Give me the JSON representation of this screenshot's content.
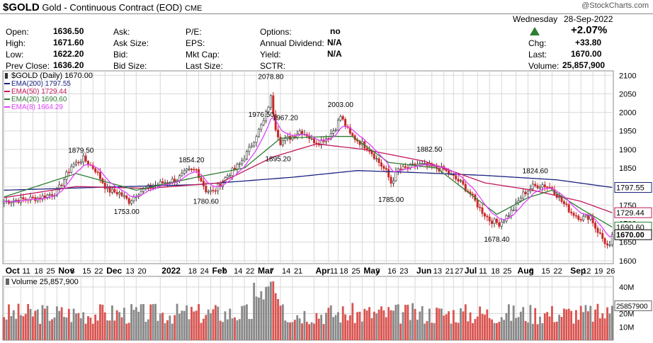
{
  "header": {
    "symbol": "$GOLD",
    "name": "Gold - Continuous Contract (EOD)",
    "exchange": "CME",
    "watermark": "@StockCharts.com",
    "day": "Wednesday",
    "date": "28-Sep-2022"
  },
  "quote": {
    "open_label": "Open:",
    "open": "1636.50",
    "high_label": "High:",
    "high": "1671.60",
    "low_label": "Low:",
    "low": "1622.20",
    "prev_label": "Prev Close:",
    "prev": "1636.20",
    "ask_label": "Ask:",
    "asksize_label": "Ask Size:",
    "bid_label": "Bid:",
    "bidsize_label": "Bid Size:",
    "pe_label": "P/E:",
    "eps_label": "EPS:",
    "mktcap_label": "Mkt Cap:",
    "lastsize_label": "Last Size:",
    "options_label": "Options:",
    "options": "no",
    "div_label": "Annual Dividend:",
    "div": "N/A",
    "yield_label": "Yield:",
    "yield": "N/A",
    "sctr_label": "SCTR:",
    "pct_change": "+2.07%",
    "chg_label": "Chg:",
    "chg": "+33.80",
    "last_label": "Last:",
    "last": "1670.00",
    "vol_label": "Volume:",
    "volume": "25,857,900"
  },
  "colors": {
    "ema200": "#1a237e",
    "ema50": "#c2185b",
    "ema20": "#2e7d32",
    "ema8": "#e040fb",
    "up": "#888888",
    "down": "#d9534f",
    "grid": "#d8d8d8"
  },
  "chart_data": {
    "type": "line",
    "legend": {
      "price": "$GOLD (Daily) 1670.00",
      "ema200": "EMA(200) 1797.55",
      "ema50": "EMA(50) 1729.44",
      "ema20": "EMA(20) 1690.60",
      "ema8": "EMA(8) 1664.29"
    },
    "ylim": [
      1592,
      2112
    ],
    "yticks": [
      1600,
      1650,
      1700,
      1750,
      1800,
      1850,
      1900,
      1950,
      2000,
      2050,
      2100
    ],
    "last_labels": [
      {
        "value": 1797.55,
        "text": "1797.55",
        "series": "ema200"
      },
      {
        "value": 1729.44,
        "text": "1729.44",
        "series": "ema50"
      },
      {
        "value": 1690.6,
        "text": "1690.60",
        "series": "ema20"
      },
      {
        "value": 1670.0,
        "text": "1670.00",
        "series": "price"
      }
    ],
    "xticks": [
      {
        "i": 0,
        "label": "Oct",
        "major": true
      },
      {
        "i": 7,
        "label": "11"
      },
      {
        "i": 12,
        "label": "18"
      },
      {
        "i": 17,
        "label": "25"
      },
      {
        "i": 22,
        "label": "Nov",
        "major": true
      },
      {
        "i": 27,
        "label": "8"
      },
      {
        "i": 32,
        "label": "15"
      },
      {
        "i": 37,
        "label": "22"
      },
      {
        "i": 42,
        "label": "Dec",
        "major": true
      },
      {
        "i": 50,
        "label": "13"
      },
      {
        "i": 55,
        "label": "20"
      },
      {
        "i": 65,
        "label": "2022",
        "major": true
      },
      {
        "i": 76,
        "label": "18"
      },
      {
        "i": 81,
        "label": "24"
      },
      {
        "i": 86,
        "label": "Feb",
        "major": true
      },
      {
        "i": 90,
        "label": "7"
      },
      {
        "i": 95,
        "label": "14"
      },
      {
        "i": 100,
        "label": "22"
      },
      {
        "i": 105,
        "label": "Mar",
        "major": true
      },
      {
        "i": 110,
        "label": "7"
      },
      {
        "i": 115,
        "label": "14"
      },
      {
        "i": 120,
        "label": "21"
      },
      {
        "i": 129,
        "label": "Apr",
        "major": true
      },
      {
        "i": 135,
        "label": "11"
      },
      {
        "i": 139,
        "label": "18"
      },
      {
        "i": 144,
        "label": "25"
      },
      {
        "i": 149,
        "label": "May",
        "major": true
      },
      {
        "i": 154,
        "label": "9"
      },
      {
        "i": 159,
        "label": "16"
      },
      {
        "i": 164,
        "label": "23"
      },
      {
        "i": 171,
        "label": "Jun",
        "major": true
      },
      {
        "i": 178,
        "label": "13"
      },
      {
        "i": 183,
        "label": "21"
      },
      {
        "i": 187,
        "label": "27"
      },
      {
        "i": 191,
        "label": "Jul",
        "major": true
      },
      {
        "i": 197,
        "label": "11"
      },
      {
        "i": 202,
        "label": "18"
      },
      {
        "i": 207,
        "label": "25"
      },
      {
        "i": 213,
        "label": "Aug",
        "major": true
      },
      {
        "i": 218,
        "label": "8"
      },
      {
        "i": 223,
        "label": "15"
      },
      {
        "i": 228,
        "label": "22"
      },
      {
        "i": 235,
        "label": "Sep",
        "major": true
      },
      {
        "i": 240,
        "label": "12"
      },
      {
        "i": 245,
        "label": "19"
      },
      {
        "i": 250,
        "label": "26"
      }
    ],
    "anchors": [
      [
        0,
        1760
      ],
      [
        8,
        1765
      ],
      [
        15,
        1770
      ],
      [
        22,
        1785
      ],
      [
        28,
        1855
      ],
      [
        33,
        1875
      ],
      [
        38,
        1845
      ],
      [
        43,
        1790
      ],
      [
        48,
        1782
      ],
      [
        52,
        1760
      ],
      [
        56,
        1785
      ],
      [
        61,
        1800
      ],
      [
        66,
        1810
      ],
      [
        72,
        1820
      ],
      [
        76,
        1840
      ],
      [
        80,
        1845
      ],
      [
        84,
        1790
      ],
      [
        87,
        1785
      ],
      [
        93,
        1830
      ],
      [
        98,
        1860
      ],
      [
        102,
        1900
      ],
      [
        105,
        1940
      ],
      [
        108,
        1975
      ],
      [
        111,
        2040
      ],
      [
        113,
        1960
      ],
      [
        115,
        1920
      ],
      [
        118,
        1930
      ],
      [
        120,
        1935
      ],
      [
        123,
        1950
      ],
      [
        126,
        1940
      ],
      [
        128,
        1925
      ],
      [
        131,
        1920
      ],
      [
        135,
        1935
      ],
      [
        138,
        1960
      ],
      [
        140,
        1990
      ],
      [
        144,
        1940
      ],
      [
        148,
        1920
      ],
      [
        152,
        1900
      ],
      [
        156,
        1865
      ],
      [
        159,
        1840
      ],
      [
        161,
        1810
      ],
      [
        164,
        1845
      ],
      [
        168,
        1850
      ],
      [
        172,
        1860
      ],
      [
        176,
        1855
      ],
      [
        180,
        1850
      ],
      [
        183,
        1845
      ],
      [
        186,
        1830
      ],
      [
        190,
        1810
      ],
      [
        194,
        1780
      ],
      [
        198,
        1740
      ],
      [
        202,
        1710
      ],
      [
        206,
        1700
      ],
      [
        208,
        1712
      ],
      [
        212,
        1740
      ],
      [
        216,
        1780
      ],
      [
        220,
        1800
      ],
      [
        224,
        1805
      ],
      [
        228,
        1795
      ],
      [
        232,
        1760
      ],
      [
        236,
        1730
      ],
      [
        240,
        1715
      ],
      [
        244,
        1720
      ],
      [
        246,
        1690
      ],
      [
        249,
        1660
      ],
      [
        251,
        1640
      ],
      [
        252,
        1636
      ],
      [
        253,
        1670
      ]
    ],
    "peaks": [
      {
        "i": 32,
        "value": 1879.5,
        "label": "1879.50",
        "pos": "above"
      },
      {
        "i": 51,
        "value": 1753.0,
        "label": "1753.00",
        "pos": "below"
      },
      {
        "i": 78,
        "value": 1854.2,
        "label": "1854.20",
        "pos": "above"
      },
      {
        "i": 84,
        "value": 1780.6,
        "label": "1780.60",
        "pos": "below"
      },
      {
        "i": 107,
        "value": 1976.5,
        "label": "1976.50",
        "pos": "above"
      },
      {
        "i": 111,
        "value": 2078.8,
        "label": "2078.80",
        "pos": "above"
      },
      {
        "i": 117,
        "value": 1967.2,
        "label": "1967.20",
        "pos": "above"
      },
      {
        "i": 114,
        "value": 1895.2,
        "label": "1895.20",
        "pos": "below"
      },
      {
        "i": 140,
        "value": 2003.0,
        "label": "2003.00",
        "pos": "above"
      },
      {
        "i": 161,
        "value": 1785.0,
        "label": "1785.00",
        "pos": "below"
      },
      {
        "i": 177,
        "value": 1882.5,
        "label": "1882.50",
        "pos": "above"
      },
      {
        "i": 205,
        "value": 1678.4,
        "label": "1678.40",
        "pos": "below"
      },
      {
        "i": 221,
        "value": 1824.6,
        "label": "1824.60",
        "pos": "above"
      }
    ],
    "ema_anchors": {
      "ema200": [
        [
          0,
          1790
        ],
        [
          40,
          1798
        ],
        [
          80,
          1805
        ],
        [
          120,
          1825
        ],
        [
          147,
          1843
        ],
        [
          170,
          1838
        ],
        [
          200,
          1830
        ],
        [
          230,
          1818
        ],
        [
          253,
          1797.55
        ]
      ],
      "ema50": [
        [
          0,
          1770
        ],
        [
          30,
          1800
        ],
        [
          60,
          1795
        ],
        [
          90,
          1810
        ],
        [
          112,
          1880
        ],
        [
          130,
          1915
        ],
        [
          150,
          1900
        ],
        [
          175,
          1868
        ],
        [
          200,
          1810
        ],
        [
          220,
          1790
        ],
        [
          240,
          1760
        ],
        [
          253,
          1729.44
        ]
      ],
      "ema20": [
        [
          0,
          1772
        ],
        [
          30,
          1835
        ],
        [
          55,
          1790
        ],
        [
          80,
          1825
        ],
        [
          100,
          1850
        ],
        [
          115,
          1930
        ],
        [
          135,
          1935
        ],
        [
          145,
          1935
        ],
        [
          160,
          1865
        ],
        [
          180,
          1850
        ],
        [
          205,
          1725
        ],
        [
          218,
          1770
        ],
        [
          228,
          1790
        ],
        [
          240,
          1740
        ],
        [
          253,
          1690.6
        ]
      ]
    },
    "volume": {
      "label": "Volume 25,857,900",
      "last_text": "25857900",
      "ylim": [
        0,
        48000000
      ],
      "yticks": [
        {
          "v": 10000000,
          "t": "10M"
        },
        {
          "v": 20000000,
          "t": "20M"
        },
        {
          "v": 40000000,
          "t": "40M"
        }
      ],
      "last": 25857900
    }
  }
}
